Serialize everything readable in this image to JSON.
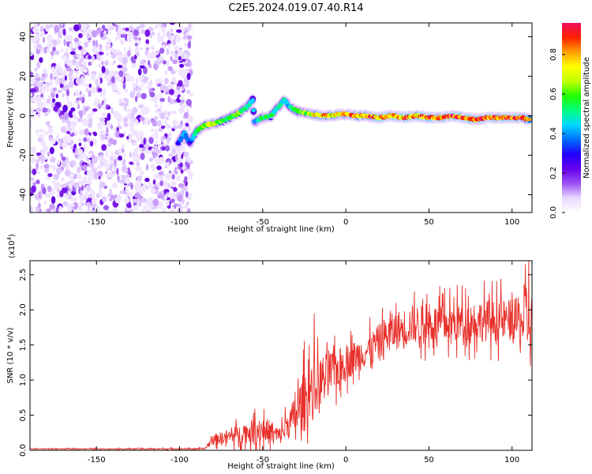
{
  "title": "C2E5.2024.019.07.40.R14",
  "chart_data": [
    {
      "type": "heatmap",
      "xlabel": "Height of straight line (km)",
      "ylabel": "Frequency (Hz)",
      "xlim": [
        -190,
        112
      ],
      "ylim": [
        -49,
        47
      ],
      "xticks": [
        -150,
        -100,
        -50,
        0,
        50,
        100
      ],
      "yticks": [
        -40,
        -20,
        0,
        20,
        40
      ],
      "colorbar": {
        "label": "Normalized spectral amplitude",
        "range": [
          0.0,
          0.96
        ],
        "ticks": [
          0.0,
          0.2,
          0.4,
          0.6,
          0.8
        ],
        "colormap": [
          "#ffffff",
          "#e8d8ff",
          "#9a50f0",
          "#6600ee",
          "#2000ff",
          "#0070ff",
          "#00d8ff",
          "#00ff80",
          "#20ff00",
          "#c0ff00",
          "#ffff00",
          "#ffa000",
          "#ff2000",
          "#f01060"
        ]
      },
      "noise_region": {
        "x_range": [
          -190,
          -93
        ],
        "description": "scattered low-amplitude noise"
      },
      "signal_trace": [
        {
          "x": -101,
          "y": -14,
          "amp": 0.35
        },
        {
          "x": -97,
          "y": -9,
          "amp": 0.45
        },
        {
          "x": -94,
          "y": -14,
          "amp": 0.3
        },
        {
          "x": -90,
          "y": -8,
          "amp": 0.55
        },
        {
          "x": -85,
          "y": -5,
          "amp": 0.7
        },
        {
          "x": -80,
          "y": -4,
          "amp": 0.75
        },
        {
          "x": -75,
          "y": -3,
          "amp": 0.65
        },
        {
          "x": -70,
          "y": -1,
          "amp": 0.6
        },
        {
          "x": -65,
          "y": 1,
          "amp": 0.7
        },
        {
          "x": -60,
          "y": 4,
          "amp": 0.55
        },
        {
          "x": -56,
          "y": 8,
          "amp": 0.45
        },
        {
          "x": -55,
          "y": -3,
          "amp": 0.45
        },
        {
          "x": -50,
          "y": -1,
          "amp": 0.55
        },
        {
          "x": -45,
          "y": 0,
          "amp": 0.6
        },
        {
          "x": -41,
          "y": 4,
          "amp": 0.5
        },
        {
          "x": -37,
          "y": 8,
          "amp": 0.55
        },
        {
          "x": -33,
          "y": 4,
          "amp": 0.5
        },
        {
          "x": -28,
          "y": 2,
          "amp": 0.6
        },
        {
          "x": -22,
          "y": 1,
          "amp": 0.75
        },
        {
          "x": -15,
          "y": 0,
          "amp": 0.85
        },
        {
          "x": -8,
          "y": 0,
          "amp": 0.8
        },
        {
          "x": -2,
          "y": 1,
          "amp": 0.85
        },
        {
          "x": 5,
          "y": 0,
          "amp": 0.9
        },
        {
          "x": 12,
          "y": 0,
          "amp": 0.88
        },
        {
          "x": 20,
          "y": -1,
          "amp": 0.92
        },
        {
          "x": 28,
          "y": 0,
          "amp": 0.9
        },
        {
          "x": 35,
          "y": -1,
          "amp": 0.92
        },
        {
          "x": 42,
          "y": 0,
          "amp": 0.9
        },
        {
          "x": 50,
          "y": -1,
          "amp": 0.92
        },
        {
          "x": 57,
          "y": -1,
          "amp": 0.9
        },
        {
          "x": 64,
          "y": 0,
          "amp": 0.93
        },
        {
          "x": 71,
          "y": -1,
          "amp": 0.92
        },
        {
          "x": 78,
          "y": -2,
          "amp": 0.9
        },
        {
          "x": 85,
          "y": -1,
          "amp": 0.92
        },
        {
          "x": 92,
          "y": -1,
          "amp": 0.9
        },
        {
          "x": 99,
          "y": -1,
          "amp": 0.92
        },
        {
          "x": 106,
          "y": -1,
          "amp": 0.9
        },
        {
          "x": 111,
          "y": -2,
          "amp": 0.88
        }
      ]
    },
    {
      "type": "line",
      "xlabel": "Height of straight line (km)",
      "ylabel": "SNR (10 * v/v)",
      "y_multiplier_label": "(x10",
      "y_multiplier_exp": "4",
      "y_multiplier_close": ")",
      "xlim": [
        -190,
        112
      ],
      "ylim": [
        0,
        2.7
      ],
      "xticks": [
        -150,
        -100,
        -50,
        0,
        50,
        100
      ],
      "yticks": [
        0.0,
        0.5,
        1.0,
        1.5,
        2.0,
        2.5
      ],
      "color": "#e8302a",
      "envelope": [
        {
          "x": -190,
          "base": 0.02,
          "spread": 0.01
        },
        {
          "x": -85,
          "base": 0.02,
          "spread": 0.02
        },
        {
          "x": -80,
          "base": 0.15,
          "spread": 0.15
        },
        {
          "x": -70,
          "base": 0.2,
          "spread": 0.2
        },
        {
          "x": -50,
          "base": 0.3,
          "spread": 0.4
        },
        {
          "x": -40,
          "base": 0.2,
          "spread": 0.25
        },
        {
          "x": -32,
          "base": 0.45,
          "spread": 0.5
        },
        {
          "x": -25,
          "base": 0.7,
          "spread": 0.9
        },
        {
          "x": -15,
          "base": 1.0,
          "spread": 0.7
        },
        {
          "x": 0,
          "base": 1.25,
          "spread": 0.5
        },
        {
          "x": 15,
          "base": 1.45,
          "spread": 0.45
        },
        {
          "x": 25,
          "base": 1.65,
          "spread": 0.55
        },
        {
          "x": 40,
          "base": 1.8,
          "spread": 0.55
        },
        {
          "x": 60,
          "base": 1.8,
          "spread": 0.55
        },
        {
          "x": 80,
          "base": 1.85,
          "spread": 0.6
        },
        {
          "x": 100,
          "base": 1.85,
          "spread": 0.6
        },
        {
          "x": 112,
          "base": 1.8,
          "spread": 0.85
        }
      ],
      "spikes": [
        {
          "x": -19,
          "y": 1.95
        },
        {
          "x": -22,
          "y": 1.5
        },
        {
          "x": 108,
          "y": 2.65
        },
        {
          "x": 110,
          "y": 2.7
        },
        {
          "x": 111,
          "y": 1.2
        }
      ]
    }
  ]
}
